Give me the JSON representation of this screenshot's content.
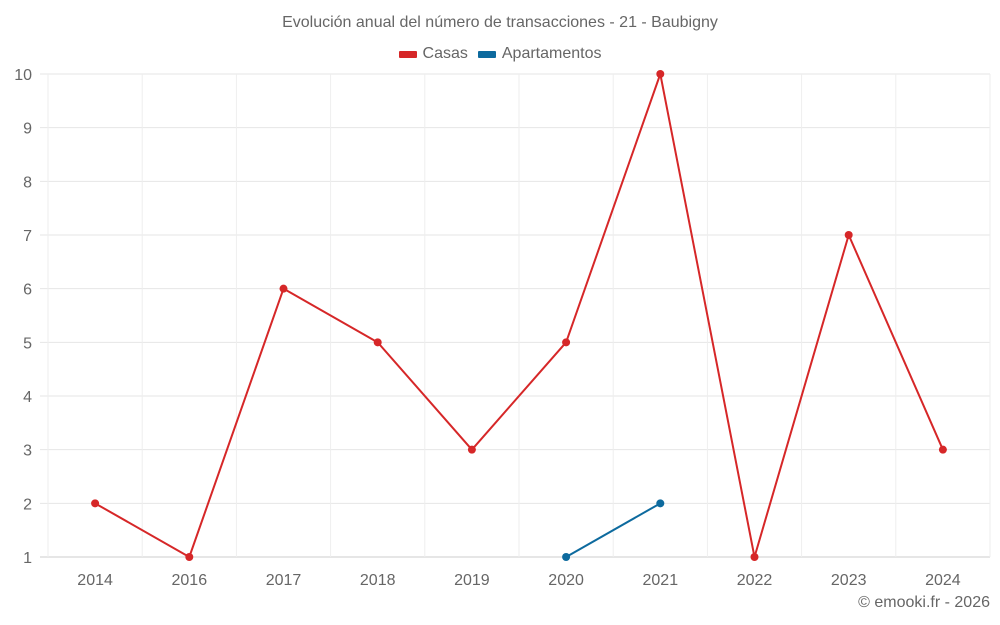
{
  "chart_data": {
    "type": "line",
    "title": "Evolución anual del número de transacciones - 21 - Baubigny",
    "categories": [
      "2014",
      "2016",
      "2017",
      "2018",
      "2019",
      "2020",
      "2021",
      "2022",
      "2023",
      "2024"
    ],
    "series": [
      {
        "name": "Casas",
        "color": "#d62728",
        "values": [
          2,
          1,
          6,
          5,
          3,
          5,
          10,
          1,
          7,
          3
        ]
      },
      {
        "name": "Apartamentos",
        "color": "#0d6a9e",
        "values": [
          null,
          null,
          null,
          null,
          null,
          1,
          2,
          null,
          null,
          null
        ]
      }
    ],
    "xlabel": "",
    "ylabel": "",
    "ylim": [
      1,
      10
    ],
    "yticks": [
      1,
      2,
      3,
      4,
      5,
      6,
      7,
      8,
      9,
      10
    ],
    "grid": true,
    "legend_position": "top-center"
  },
  "header": {
    "title": "Evolución anual del número de transacciones - 21 - Baubigny"
  },
  "legend": {
    "items": [
      {
        "label": "Casas",
        "color": "#d62728"
      },
      {
        "label": "Apartamentos",
        "color": "#0d6a9e"
      }
    ]
  },
  "footer": {
    "credit": "© emooki.fr - 2026"
  }
}
